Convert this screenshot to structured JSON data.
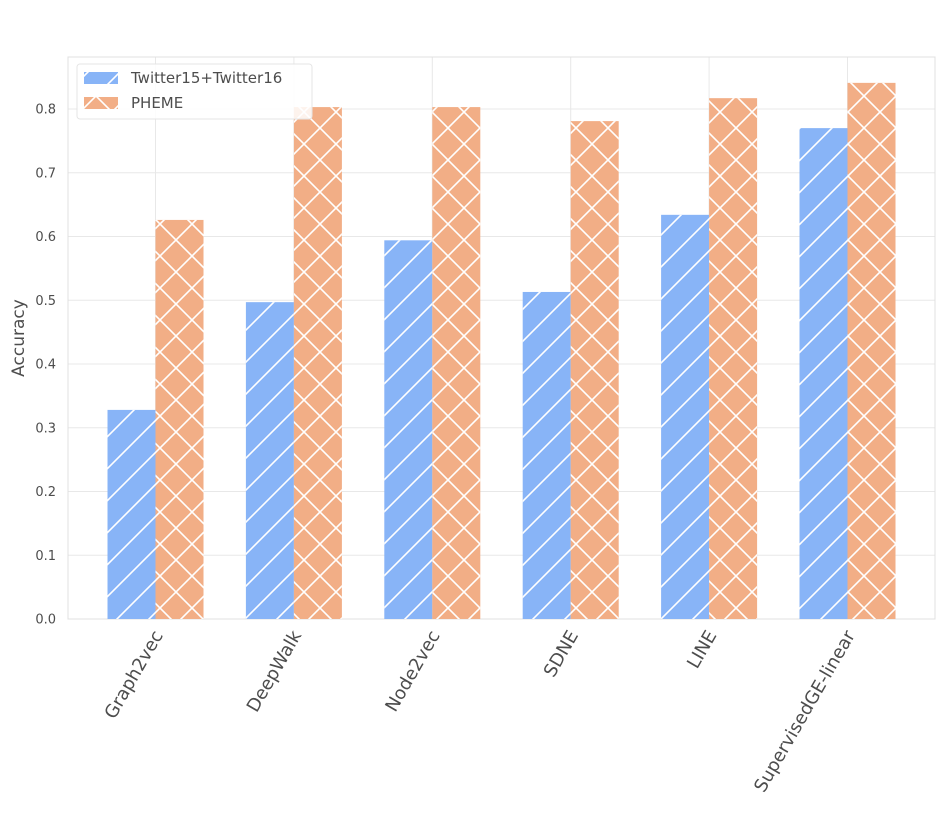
{
  "chart_data": {
    "type": "bar",
    "title": "",
    "xlabel": "",
    "ylabel": "Accuracy",
    "ylim": [
      0,
      0.88
    ],
    "yticks": [
      "0.0",
      "0.1",
      "0.2",
      "0.3",
      "0.4",
      "0.5",
      "0.6",
      "0.7",
      "0.8"
    ],
    "grid": true,
    "legend_position": "top-left",
    "categories": [
      "Graph2vec",
      "DeepWalk",
      "Node2vec",
      "SDNE",
      "LINE",
      "SupervisedGE-linear"
    ],
    "series": [
      {
        "name": "Twitter15+Twitter16",
        "color": "#88b4f7",
        "hatch": "/",
        "values": [
          0.328,
          0.497,
          0.594,
          0.513,
          0.634,
          0.77
        ]
      },
      {
        "name": "PHEME",
        "color": "#f2ae86",
        "hatch": "x",
        "values": [
          0.626,
          0.803,
          0.803,
          0.781,
          0.817,
          0.841
        ]
      }
    ]
  }
}
